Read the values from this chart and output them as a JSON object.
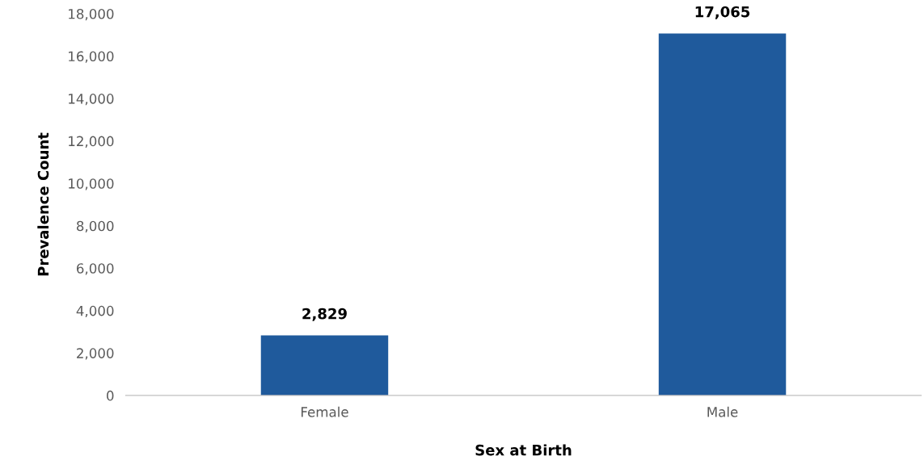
{
  "chart_data": {
    "type": "bar",
    "xlabel": "Sex at Birth",
    "ylabel": "Prevalence Count",
    "categories": [
      "Female",
      "Male"
    ],
    "values": [
      2829,
      17065
    ],
    "color": "#1f5a9c",
    "ylim": [
      0,
      18000
    ],
    "yticks": [
      0,
      {
        "value": 2000,
        "label": "2,000"
      },
      {
        "value": 4000,
        "label": "4,000"
      },
      {
        "value": 6000,
        "label": "6,000"
      },
      {
        "value": 8000,
        "label": "8,000"
      },
      {
        "value": 10000,
        "label": "10,000"
      },
      {
        "value": 12000,
        "label": "12,000"
      },
      {
        "value": 14000,
        "label": "14,000"
      },
      {
        "value": 16000,
        "label": "16,000"
      },
      {
        "value": 18000,
        "label": "18,000"
      }
    ],
    "value_labels": [
      "2,829",
      "17,065"
    ],
    "grid": false,
    "legend": false
  }
}
